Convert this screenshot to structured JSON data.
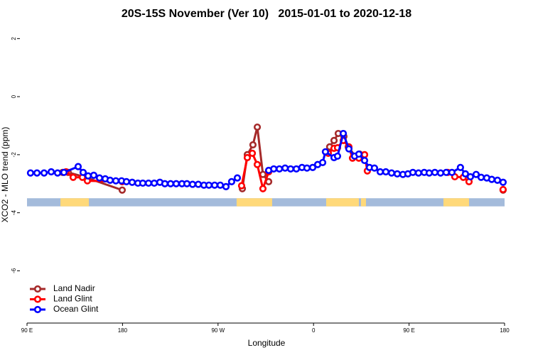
{
  "chart_data": {
    "type": "line",
    "title": "20S-15S November (Ver 10)   2015-01-01 to 2020-12-18",
    "x_label": "Longitude",
    "y_label": "XCO2 - MLO trend (ppm)",
    "xlim": [
      90,
      540
    ],
    "xticks": [
      {
        "value": 90,
        "label": "90 E"
      },
      180,
      {
        "value": 270,
        "label": "90 W"
      },
      {
        "value": 360,
        "label": "0"
      },
      {
        "value": 450,
        "label": "90 E"
      },
      {
        "value": 540,
        "label": "180"
      }
    ],
    "ylim": [
      -7.8,
      2.4
    ],
    "yticks": [
      2,
      0,
      -2,
      -4,
      -6
    ],
    "legend": "bottomleft",
    "mask_ylim": [
      -3.78,
      -3.5
    ],
    "ocean_color": "#a4bbdb",
    "land_color": "#ffd97a",
    "land_mask": [
      [
        121.5,
        148.3
      ],
      [
        287.5,
        321
      ],
      [
        371.9,
        402.7
      ],
      [
        404.7,
        409.4
      ],
      [
        482.4,
        506.5
      ]
    ],
    "series": [
      {
        "name": "Land Nadir",
        "color": "#a52a2a",
        "x": [
          123.5,
          128.8,
          143.6,
          179.7,
          null,
          292.9,
          297.6,
          302.9,
          307.0,
          312.3,
          317.7,
          null,
          375.2,
          379.3,
          383.3,
          388.6,
          392.7,
          399.3,
          403.4,
          null,
          538.6
        ],
        "values": [
          -2.61,
          -2.61,
          -2.76,
          -3.22,
          null,
          -3.17,
          -2.0,
          -1.66,
          -1.05,
          -2.68,
          -2.93,
          null,
          -1.73,
          -1.51,
          -1.27,
          -1.37,
          -1.73,
          -2.05,
          -1.98,
          null,
          -3.22
        ]
      },
      {
        "name": "Land Glint",
        "color": "#ff0000",
        "x": [
          126.8,
          133.5,
          142.2,
          146.9,
          179.7,
          null,
          292.2,
          297.6,
          302.3,
          307.0,
          312.3,
          317.7,
          null,
          373.9,
          379.3,
          382.6,
          388.0,
          393.3,
          396.7,
          402.7,
          408.1,
          410.7,
          null,
          486.4,
          493.1,
          501.1,
          506.5,
          null,
          538.6
        ],
        "values": [
          -2.59,
          -2.78,
          -2.78,
          -2.9,
          -2.93,
          null,
          -3.07,
          -2.1,
          -1.95,
          -2.34,
          -3.17,
          -2.59,
          null,
          -1.95,
          -1.78,
          -1.76,
          -1.51,
          -1.73,
          -2.12,
          -2.12,
          -2.0,
          -2.56,
          null,
          -2.61,
          -2.76,
          -2.78,
          -2.93,
          null,
          -3.2
        ]
      },
      {
        "name": "Ocean Glint",
        "color": "#0000ff",
        "x": [
          93.3,
          99.4,
          106.1,
          112.8,
          118.8,
          124.8,
          138.2,
          142.9,
          147.6,
          152.9,
          158.3,
          163.7,
          168.3,
          173.7,
          179.1,
          183.7,
          189.1,
          194.5,
          199.1,
          204.5,
          209.9,
          215.2,
          219.9,
          225.3,
          230.6,
          236.0,
          240.7,
          246.0,
          251.4,
          256.7,
          261.4,
          266.8,
          272.1,
          277.5,
          282.8,
          288.2,
          null,
          317.7,
          322.5,
          327.8,
          333.2,
          338.4,
          343.8,
          349.1,
          353.8,
          359.2,
          363.9,
          368.6,
          371.2,
          379.3,
          382.6,
          388.0,
          393.3,
          398.7,
          402.7,
          408.1,
          412.7,
          417.4,
          422.8,
          428.1,
          433.5,
          438.9,
          444.2,
          448.9,
          453.6,
          458.9,
          464.3,
          469.0,
          474.3,
          479.7,
          485.0,
          490.4,
          498.4,
          503.1,
          507.8,
          513.2,
          517.9,
          523.2,
          527.9,
          533.3,
          538.6
        ],
        "values": [
          -2.63,
          -2.63,
          -2.63,
          -2.59,
          -2.63,
          -2.61,
          -2.41,
          -2.61,
          -2.73,
          -2.71,
          -2.8,
          -2.83,
          -2.88,
          -2.9,
          -2.9,
          -2.93,
          -2.95,
          -2.98,
          -2.98,
          -2.98,
          -2.98,
          -2.95,
          -3.0,
          -3.0,
          -3.0,
          -3.0,
          -3.0,
          -3.02,
          -3.02,
          -3.05,
          -3.05,
          -3.05,
          -3.05,
          -3.1,
          -2.93,
          -2.8,
          null,
          -2.54,
          -2.49,
          -2.49,
          -2.46,
          -2.49,
          -2.49,
          -2.44,
          -2.46,
          -2.44,
          -2.34,
          -2.27,
          -1.9,
          -2.1,
          -2.05,
          -1.27,
          -1.8,
          -2.05,
          -1.98,
          -2.2,
          -2.44,
          -2.46,
          -2.59,
          -2.59,
          -2.63,
          -2.66,
          -2.68,
          -2.66,
          -2.61,
          -2.63,
          -2.61,
          -2.63,
          -2.61,
          -2.63,
          -2.61,
          -2.61,
          -2.44,
          -2.66,
          -2.76,
          -2.68,
          -2.78,
          -2.8,
          -2.85,
          -2.88,
          -2.95
        ]
      }
    ]
  }
}
